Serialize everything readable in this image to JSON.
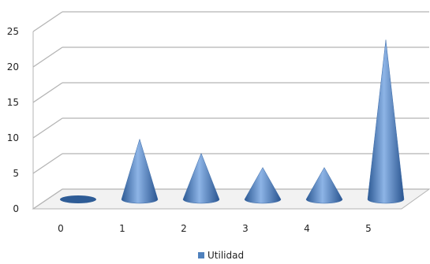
{
  "chart_data": {
    "type": "bar",
    "shape": "cone",
    "view": "3d",
    "categories": [
      "0",
      "1",
      "2",
      "3",
      "4",
      "5"
    ],
    "series": [
      {
        "name": "Utilidad",
        "values": [
          0,
          8.5,
          6.5,
          4.5,
          4.5,
          22.5
        ]
      }
    ],
    "ylim": [
      0,
      25
    ],
    "yticks": [
      "0",
      "5",
      "10",
      "15",
      "20",
      "25"
    ],
    "grid": true,
    "legend": "bottom",
    "colors": {
      "series": "#4f81bd",
      "grid": "#b4b4b4"
    }
  }
}
